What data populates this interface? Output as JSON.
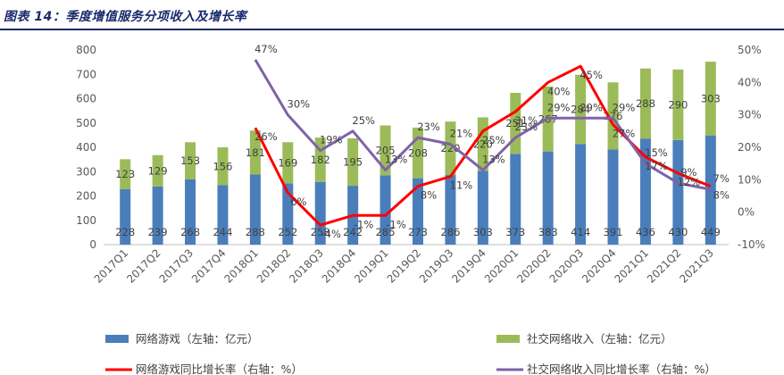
{
  "figure": {
    "title": "图表 14：季度增值服务分项收入及增长率"
  },
  "colors": {
    "title": "#1a2a6c",
    "games_bar": "#4a7ebb",
    "social_bar": "#9bbb59",
    "games_line": "#ff0000",
    "social_line": "#7f62a8"
  },
  "chart_data": {
    "type": "bar",
    "stacked": true,
    "categories": [
      "2017Q1",
      "2017Q2",
      "2017Q3",
      "2017Q4",
      "2018Q1",
      "2018Q2",
      "2018Q3",
      "2018Q4",
      "2019Q1",
      "2019Q2",
      "2019Q3",
      "2019Q4",
      "2020Q1",
      "2020Q2",
      "2020Q3",
      "2020Q4",
      "2021Q1",
      "2021Q2",
      "2021Q3"
    ],
    "y_left": {
      "min": 0,
      "max": 800,
      "step": 100,
      "ticks": [
        "0",
        "100",
        "200",
        "300",
        "400",
        "500",
        "600",
        "700",
        "800"
      ]
    },
    "y_right": {
      "min": -10,
      "max": 50,
      "step": 10,
      "ticks": [
        "-10%",
        "0%",
        "10%",
        "20%",
        "30%",
        "40%",
        "50%"
      ]
    },
    "grid": false,
    "legend_position": "bottom",
    "bar_series": [
      {
        "name": "网络游戏（左轴：亿元）",
        "values": [
          228,
          239,
          268,
          244,
          288,
          252,
          258,
          242,
          285,
          273,
          286,
          303,
          373,
          383,
          414,
          391,
          436,
          430,
          449
        ],
        "labels": [
          "228",
          "239",
          "268",
          "244",
          "288",
          "252",
          "258",
          "242",
          "285",
          "273",
          "286",
          "303",
          "373",
          "383",
          "414",
          "391",
          "436",
          "430",
          "449"
        ]
      },
      {
        "name": "社交网络收入（左轴：亿元）",
        "values": [
          123,
          129,
          153,
          156,
          181,
          169,
          182,
          195,
          205,
          208,
          220,
          220,
          251,
          267,
          284,
          276,
          288,
          290,
          303
        ],
        "labels": [
          "123",
          "129",
          "153",
          "156",
          "181",
          "169",
          "182",
          "195",
          "205",
          "208",
          "220",
          "220",
          "251",
          "267",
          "284",
          "276",
          "288",
          "290",
          "303"
        ]
      }
    ],
    "line_series": [
      {
        "name": "网络游戏同比增长率（右轴：%）",
        "values": [
          null,
          null,
          null,
          null,
          26,
          6,
          -4,
          -1,
          -1,
          8,
          11,
          25,
          31,
          40,
          45,
          27,
          17,
          12,
          8
        ],
        "labels": [
          null,
          null,
          null,
          null,
          "26%",
          "6%",
          "-4%",
          "-1%",
          "-1%",
          "8%",
          "11%",
          "25%",
          "31%",
          "40%",
          "45%",
          "27%",
          "17%",
          "12%",
          "8%"
        ]
      },
      {
        "name": "社交网络收入同比增长率（右轴：%）",
        "values": [
          null,
          null,
          null,
          null,
          47,
          30,
          19,
          25,
          13,
          23,
          21,
          13,
          23,
          29,
          29,
          29,
          15,
          9,
          7
        ],
        "labels": [
          null,
          null,
          null,
          null,
          "47%",
          "30%",
          "19%",
          "25%",
          "13%",
          "23%",
          "21%",
          "13%",
          "23%",
          "29%",
          "29%",
          "29%",
          "15%",
          "9%",
          "7%"
        ]
      }
    ]
  }
}
